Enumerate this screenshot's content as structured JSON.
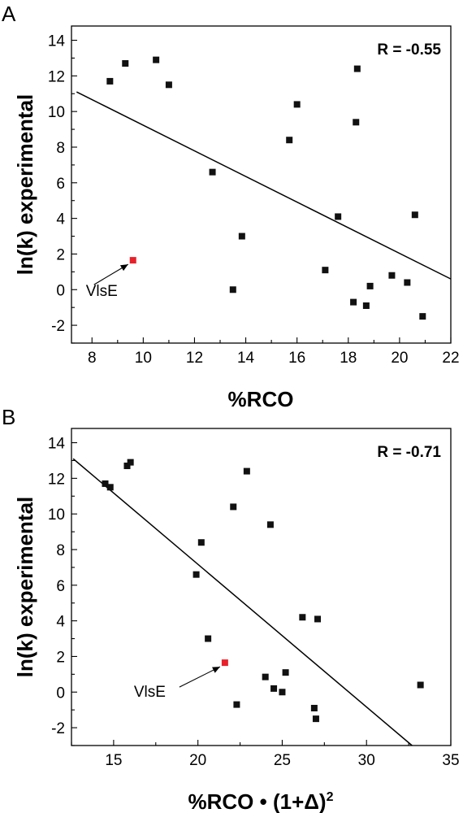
{
  "chart_data": [
    {
      "type": "scatter",
      "panel": "A",
      "xlabel": "%RCO",
      "ylabel": "ln(k) experimental",
      "annotation": "R = -0.55",
      "xlim": [
        7.2,
        22
      ],
      "ylim": [
        -3.0,
        14.8
      ],
      "xticks": [
        8,
        10,
        12,
        14,
        16,
        18,
        20,
        22
      ],
      "yticks": [
        -2,
        0,
        2,
        4,
        6,
        8,
        10,
        12,
        14
      ],
      "points": [
        {
          "x": 8.7,
          "y": 11.7
        },
        {
          "x": 9.3,
          "y": 12.7
        },
        {
          "x": 10.5,
          "y": 12.9
        },
        {
          "x": 11.0,
          "y": 11.5
        },
        {
          "x": 12.7,
          "y": 6.6
        },
        {
          "x": 13.5,
          "y": 0.0
        },
        {
          "x": 13.85,
          "y": 3.0
        },
        {
          "x": 15.7,
          "y": 8.4
        },
        {
          "x": 16.0,
          "y": 10.4
        },
        {
          "x": 17.1,
          "y": 1.1
        },
        {
          "x": 17.6,
          "y": 4.1
        },
        {
          "x": 18.2,
          "y": -0.7
        },
        {
          "x": 18.3,
          "y": 9.4
        },
        {
          "x": 18.35,
          "y": 12.4
        },
        {
          "x": 18.7,
          "y": -0.9
        },
        {
          "x": 18.85,
          "y": 0.2
        },
        {
          "x": 19.7,
          "y": 0.8
        },
        {
          "x": 20.3,
          "y": 0.4
        },
        {
          "x": 20.6,
          "y": 4.2
        },
        {
          "x": 20.9,
          "y": -1.5
        }
      ],
      "highlight": {
        "x": 9.6,
        "y": 1.65,
        "label": "VlsE",
        "color": "#e8202a"
      },
      "fit_line": {
        "x": [
          7.4,
          22.0
        ],
        "y": [
          11.1,
          0.6
        ]
      }
    },
    {
      "type": "scatter",
      "panel": "B",
      "xlabel": "%RCO • (1+Δ)",
      "xlabel_sup": "2",
      "ylabel": "ln(k) experimental",
      "annotation": "R = -0.71",
      "xlim": [
        12.5,
        35
      ],
      "ylim": [
        -3.0,
        14.8
      ],
      "xticks": [
        15,
        20,
        25,
        30,
        35
      ],
      "yticks": [
        -2,
        0,
        2,
        4,
        6,
        8,
        10,
        12,
        14
      ],
      "points": [
        {
          "x": 14.5,
          "y": 11.7
        },
        {
          "x": 14.8,
          "y": 11.5
        },
        {
          "x": 15.8,
          "y": 12.7
        },
        {
          "x": 16.0,
          "y": 12.9
        },
        {
          "x": 19.9,
          "y": 6.6
        },
        {
          "x": 20.2,
          "y": 8.4
        },
        {
          "x": 20.6,
          "y": 3.0
        },
        {
          "x": 22.1,
          "y": 10.4
        },
        {
          "x": 22.3,
          "y": -0.7
        },
        {
          "x": 22.9,
          "y": 12.4
        },
        {
          "x": 24.0,
          "y": 0.85
        },
        {
          "x": 24.3,
          "y": 9.4
        },
        {
          "x": 24.5,
          "y": 0.2
        },
        {
          "x": 25.0,
          "y": 0.0
        },
        {
          "x": 25.2,
          "y": 1.1
        },
        {
          "x": 26.2,
          "y": 4.2
        },
        {
          "x": 26.9,
          "y": -0.9
        },
        {
          "x": 27.0,
          "y": -1.5
        },
        {
          "x": 27.1,
          "y": 4.1
        },
        {
          "x": 33.2,
          "y": 0.4
        }
      ],
      "highlight": {
        "x": 21.6,
        "y": 1.65,
        "label": "VlsE",
        "color": "#e8202a"
      },
      "fit_line": {
        "x": [
          12.6,
          32.7
        ],
        "y": [
          13.1,
          -3.0
        ]
      }
    }
  ],
  "panels": [
    {
      "letter": "A"
    },
    {
      "letter": "B"
    }
  ]
}
